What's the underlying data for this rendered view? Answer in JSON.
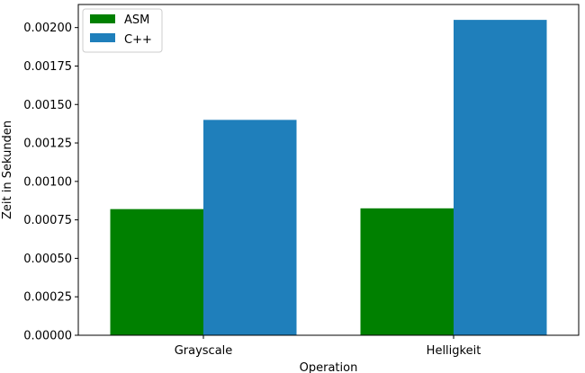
{
  "chart_data": {
    "type": "bar",
    "title": "",
    "xlabel": "Operation",
    "ylabel": "Zeit in Sekunden",
    "categories": [
      "Grayscale",
      "Helligkeit"
    ],
    "series": [
      {
        "name": "ASM",
        "values": [
          0.00082,
          0.000825
        ],
        "color": "#008000"
      },
      {
        "name": "C++",
        "values": [
          0.0014,
          0.00205
        ],
        "color": "#1f7fbb"
      }
    ],
    "ylim": [
      0,
      0.00215
    ],
    "yticks": [
      0,
      0.00025,
      0.0005,
      0.00075,
      0.001,
      0.00125,
      0.0015,
      0.00175,
      0.002
    ],
    "ytick_labels": [
      "0.00000",
      "0.00025",
      "0.00050",
      "0.00075",
      "0.00100",
      "0.00125",
      "0.00150",
      "0.00175",
      "0.00200"
    ],
    "grid": false,
    "legend_position": "top-left"
  }
}
